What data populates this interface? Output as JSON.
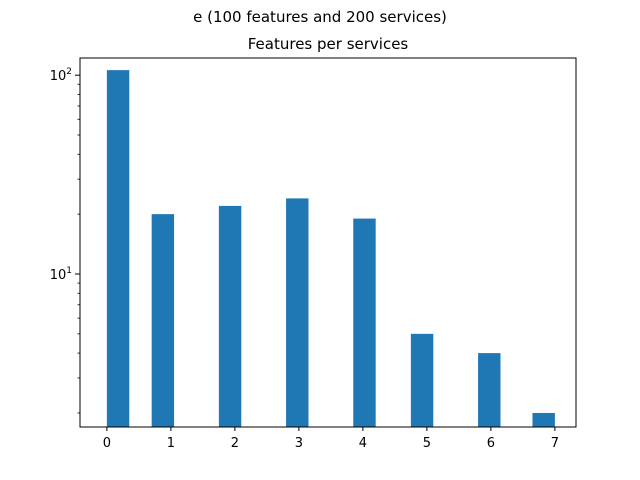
{
  "chart_data": {
    "type": "bar",
    "suptitle": "e (100 features and 200 services)",
    "title": "Features per services",
    "xlabel": "",
    "ylabel": "",
    "yscale": "log",
    "ylim": [
      1.7,
      122
    ],
    "xlim": [
      -0.42,
      7.33
    ],
    "x_ticks": [
      0,
      1,
      2,
      3,
      4,
      5,
      6,
      7
    ],
    "y_ticks": [
      {
        "base": "10",
        "exp": "1",
        "value": 10
      },
      {
        "base": "10",
        "exp": "2",
        "value": 100
      }
    ],
    "bars": [
      {
        "x": 0.175,
        "value": 106
      },
      {
        "x": 0.875,
        "value": 20
      },
      {
        "x": 1.925,
        "value": 22
      },
      {
        "x": 2.975,
        "value": 24
      },
      {
        "x": 4.025,
        "value": 19
      },
      {
        "x": 4.925,
        "value": 5
      },
      {
        "x": 5.975,
        "value": 4
      },
      {
        "x": 6.825,
        "value": 2
      }
    ],
    "bar_width": 0.35,
    "color": "#1f77b4",
    "grid": false,
    "legend": "none"
  }
}
